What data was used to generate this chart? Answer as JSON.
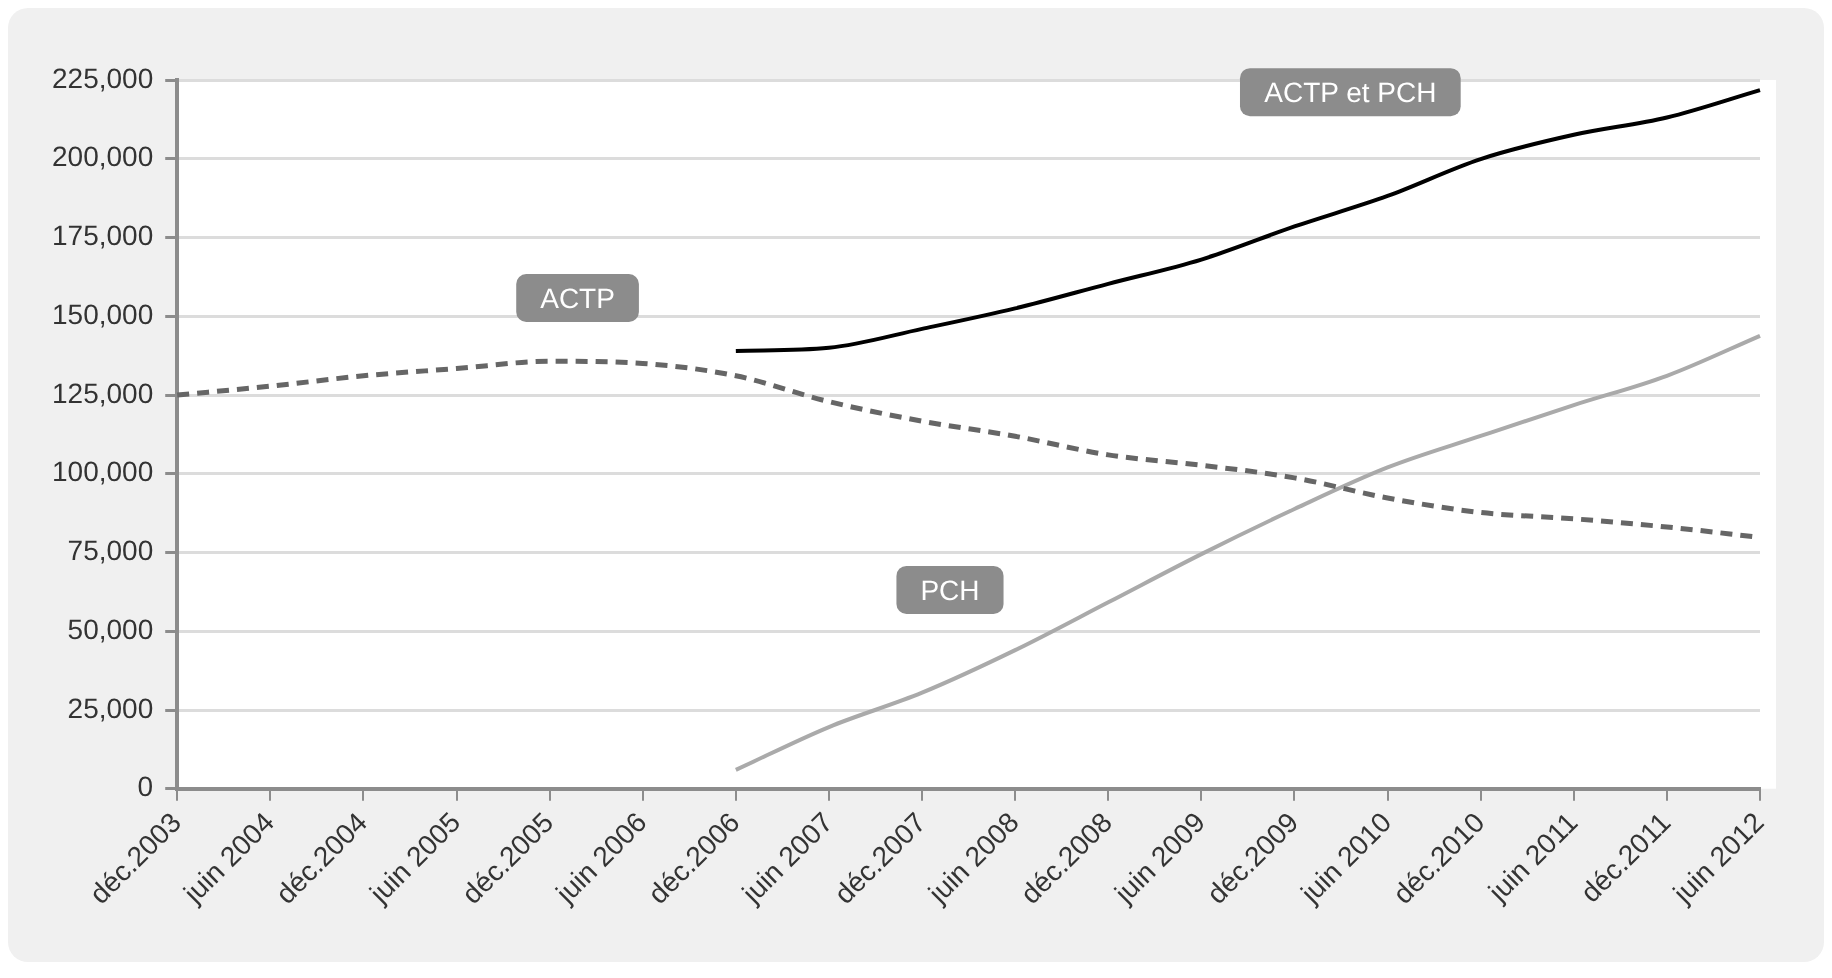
{
  "chart_data": {
    "type": "line",
    "categories": [
      "déc.2003",
      "juin 2004",
      "déc.2004",
      "juin 2005",
      "déc.2005",
      "juin 2006",
      "déc.2006",
      "juin 2007",
      "déc.2007",
      "juin 2008",
      "déc.2008",
      "juin 2009",
      "déc.2009",
      "juin 2010",
      "déc.2010",
      "juin 2011",
      "déc.2011",
      "juin 2012"
    ],
    "series": [
      {
        "name": "ACTP",
        "color": "#666666",
        "line_style": "dashed",
        "values": [
          125000,
          127800,
          131100,
          133400,
          135700,
          135000,
          131100,
          122900,
          116700,
          111900,
          106000,
          102700,
          98700,
          92300,
          87700,
          85700,
          83100,
          79800
        ]
      },
      {
        "name": "ACTP et PCH",
        "color": "#000000",
        "line_style": "solid",
        "values": [
          null,
          null,
          null,
          null,
          null,
          null,
          139000,
          140000,
          146000,
          152500,
          160300,
          168000,
          178500,
          188200,
          199900,
          207600,
          213100,
          221800
        ]
      },
      {
        "name": "PCH",
        "color": "#aaaaaa",
        "line_style": "solid",
        "values": [
          null,
          null,
          null,
          null,
          null,
          null,
          6000,
          19600,
          30500,
          44000,
          59200,
          74500,
          88800,
          102000,
          112000,
          121800,
          131100,
          143800
        ]
      }
    ],
    "ylim": [
      0,
      225000
    ],
    "yticks": [
      {
        "value": 0,
        "label": "0"
      },
      {
        "value": 25000,
        "label": "25,000"
      },
      {
        "value": 50000,
        "label": "50,000"
      },
      {
        "value": 75000,
        "label": "75,000"
      },
      {
        "value": 100000,
        "label": "100,000"
      },
      {
        "value": 125000,
        "label": "125,000"
      },
      {
        "value": 150000,
        "label": "150,000"
      },
      {
        "value": 175000,
        "label": "175,000"
      },
      {
        "value": 200000,
        "label": "200,000"
      },
      {
        "value": 225000,
        "label": "225,000"
      }
    ],
    "grid": "y",
    "legend": false,
    "marker": "none"
  }
}
